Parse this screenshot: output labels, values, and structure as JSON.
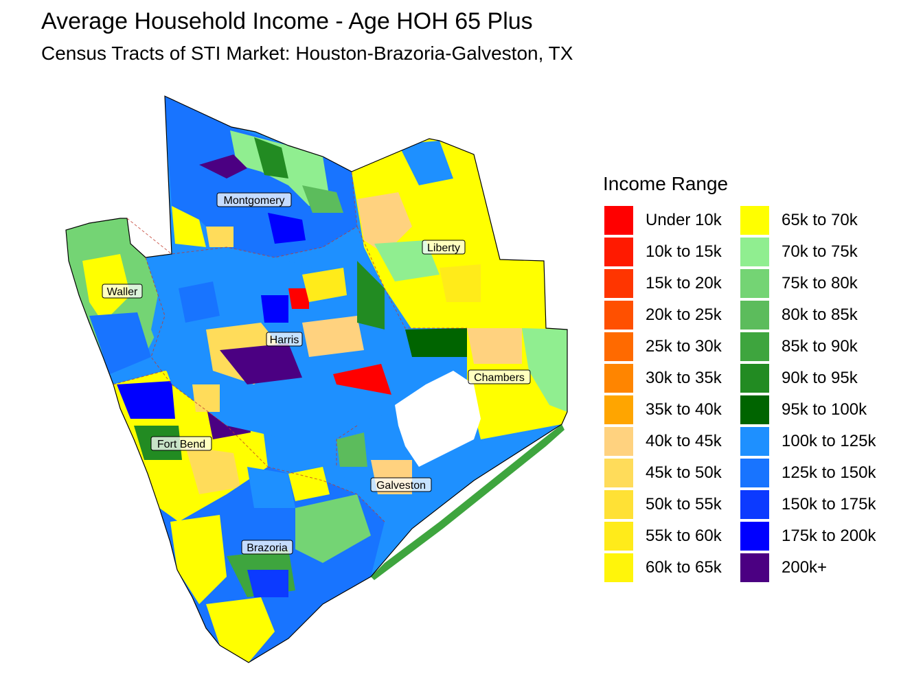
{
  "title": "Average Household Income - Age HOH 65 Plus",
  "subtitle": "Census Tracts of STI Market: Houston-Brazoria-Galveston, TX",
  "legend": {
    "title": "Income Range",
    "items": [
      {
        "label": "Under 10k",
        "color": "#ff0000"
      },
      {
        "label": "10k to 15k",
        "color": "#ff1a00"
      },
      {
        "label": "15k to 20k",
        "color": "#ff3500"
      },
      {
        "label": "20k to 25k",
        "color": "#ff5000"
      },
      {
        "label": "25k to 30k",
        "color": "#ff6a00"
      },
      {
        "label": "30k to 35k",
        "color": "#ff8500"
      },
      {
        "label": "35k to 40k",
        "color": "#ffa500"
      },
      {
        "label": "40k to 45k",
        "color": "#ffd27f"
      },
      {
        "label": "45k to 50k",
        "color": "#ffdc5a"
      },
      {
        "label": "50k to 55k",
        "color": "#ffe135"
      },
      {
        "label": "55k to 60k",
        "color": "#ffeb1a"
      },
      {
        "label": "60k to 65k",
        "color": "#fff50a"
      },
      {
        "label": "65k to 70k",
        "color": "#ffff00"
      },
      {
        "label": "70k to 75k",
        "color": "#90ee90"
      },
      {
        "label": "75k to 80k",
        "color": "#74d474"
      },
      {
        "label": "80k to 85k",
        "color": "#5cbc5c"
      },
      {
        "label": "85k to 90k",
        "color": "#3ea53e"
      },
      {
        "label": "90k to 95k",
        "color": "#228b22"
      },
      {
        "label": "95k to 100k",
        "color": "#006400"
      },
      {
        "label": "100k to 125k",
        "color": "#1e90ff"
      },
      {
        "label": "125k to 150k",
        "color": "#1874ff"
      },
      {
        "label": "150k to 175k",
        "color": "#0c3aff"
      },
      {
        "label": "175k to 200k",
        "color": "#0000ff"
      },
      {
        "label": "200k+",
        "color": "#4b0082"
      }
    ]
  },
  "counties": [
    {
      "name": "Montgomery"
    },
    {
      "name": "Liberty"
    },
    {
      "name": "Waller"
    },
    {
      "name": "Harris"
    },
    {
      "name": "Chambers"
    },
    {
      "name": "Fort Bend"
    },
    {
      "name": "Galveston"
    },
    {
      "name": "Brazoria"
    }
  ]
}
